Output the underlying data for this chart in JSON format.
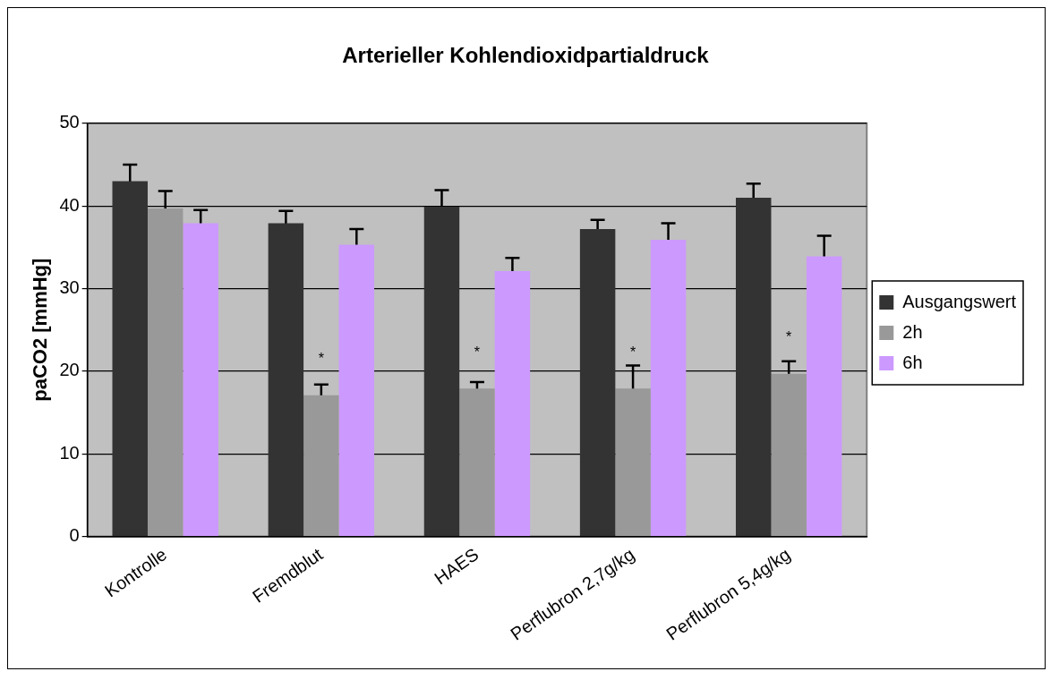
{
  "chart_data": {
    "type": "bar",
    "title": "Arterieller Kohlendioxidpartialdruck",
    "ylabel": "paCO2 [mmHg]",
    "categories": [
      "Kontrolle",
      "Fremdblut",
      "HAES",
      "Perflubron 2,7g/kg",
      "Perflubron 5,4g/kg"
    ],
    "series": [
      {
        "name": "Ausgangswert",
        "color": "#333333",
        "values": [
          43.0,
          37.9,
          39.9,
          37.2,
          41.0
        ],
        "errors": [
          2.0,
          1.5,
          2.0,
          1.1,
          1.7
        ]
      },
      {
        "name": "2h",
        "color": "#999999",
        "values": [
          39.7,
          17.1,
          17.9,
          17.9,
          19.7
        ],
        "errors": [
          2.1,
          1.3,
          0.8,
          2.8,
          1.5
        ]
      },
      {
        "name": "6h",
        "color": "#cc99ff",
        "values": [
          37.9,
          35.3,
          32.1,
          35.9,
          33.9
        ],
        "errors": [
          1.6,
          1.9,
          1.6,
          2.0,
          2.5
        ]
      }
    ],
    "ylim": [
      0,
      50
    ],
    "yticks": [
      0,
      10,
      20,
      30,
      40,
      50
    ],
    "grid": "y",
    "legend": "right",
    "annotations": [
      {
        "text": "*",
        "x": "Fremdblut",
        "y": 17.1
      },
      {
        "text": "*",
        "x": "HAES",
        "y": 17.9
      },
      {
        "text": "*",
        "x": "Perflubron 2,7g/kg",
        "y": 17.9
      },
      {
        "text": "*",
        "x": "Perflubron 5,4g/kg",
        "y": 19.7
      }
    ]
  }
}
